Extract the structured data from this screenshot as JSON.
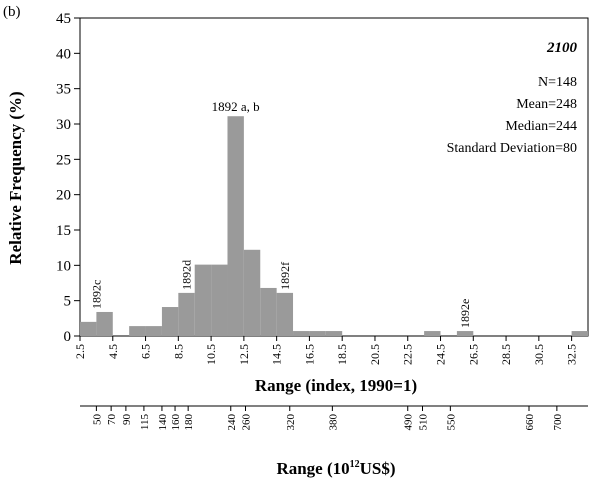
{
  "chart_data": {
    "type": "bar",
    "panel_label": "(b)",
    "scenario": "2100",
    "stats": [
      "N=148",
      "Mean=248",
      "Median=244",
      "Standard Deviation=80"
    ],
    "ylabel": "Relative Frequency (%)",
    "xlabel": "Range (index, 1990=1)",
    "ylim": [
      0,
      45
    ],
    "yticks": [
      0,
      5,
      10,
      15,
      20,
      25,
      30,
      35,
      40,
      45
    ],
    "xlim": [
      2.5,
      33.5
    ],
    "xticks": [
      2.5,
      4.5,
      6.5,
      8.5,
      10.5,
      12.5,
      14.5,
      16.5,
      18.5,
      20.5,
      22.5,
      24.5,
      26.5,
      28.5,
      30.5,
      32.5
    ],
    "xticklabels": [
      "2.5",
      "4.5",
      "6.5",
      "8.5",
      "10.5",
      "12.5",
      "14.5",
      "16.5",
      "18.5",
      "20.5",
      "22.5",
      "24.5",
      "26.5",
      "28.5",
      "30.5",
      "32.5"
    ],
    "bin_width": 1,
    "bin_starts": [
      2.5,
      3.5,
      5.5,
      6.5,
      7.5,
      8.5,
      9.5,
      10.5,
      11.5,
      12.5,
      13.5,
      14.5,
      15.5,
      16.5,
      17.5,
      23.5,
      25.5,
      32.5
    ],
    "values": [
      2.0,
      3.4,
      1.4,
      1.4,
      4.1,
      6.1,
      10.1,
      10.1,
      31.1,
      12.2,
      6.8,
      6.1,
      0.7,
      0.7,
      0.7,
      0.7,
      0.7,
      0.7
    ],
    "annotations": [
      {
        "text": "1892 a, b",
        "x": 12.0,
        "y": 31.1,
        "orientation": "horizontal"
      },
      {
        "text": "1892c",
        "x": 3.5,
        "y": 3.4,
        "orientation": "vertical"
      },
      {
        "text": "1892d",
        "x": 9.0,
        "y": 6.1,
        "orientation": "vertical"
      },
      {
        "text": "1892f",
        "x": 15.0,
        "y": 6.1,
        "orientation": "vertical"
      },
      {
        "text": "1892e",
        "x": 26.0,
        "y": 0.7,
        "orientation": "vertical"
      }
    ],
    "secondary_axis": {
      "xlabel_main": "Range (10",
      "xlabel_sup": "12",
      "xlabel_tail": "US$)",
      "ticks": [
        {
          "label": "50",
          "x": 3.5
        },
        {
          "label": "70",
          "x": 4.4
        },
        {
          "label": "90",
          "x": 5.3
        },
        {
          "label": "115",
          "x": 6.4
        },
        {
          "label": "140",
          "x": 7.5
        },
        {
          "label": "160",
          "x": 8.3
        },
        {
          "label": "180",
          "x": 9.1
        },
        {
          "label": "240",
          "x": 11.7
        },
        {
          "label": "260",
          "x": 12.6
        },
        {
          "label": "320",
          "x": 15.3
        },
        {
          "label": "380",
          "x": 17.9
        },
        {
          "label": "490",
          "x": 22.5
        },
        {
          "label": "510",
          "x": 23.4
        },
        {
          "label": "550",
          "x": 25.1
        },
        {
          "label": "660",
          "x": 29.9
        },
        {
          "label": "700",
          "x": 31.6
        }
      ]
    }
  }
}
